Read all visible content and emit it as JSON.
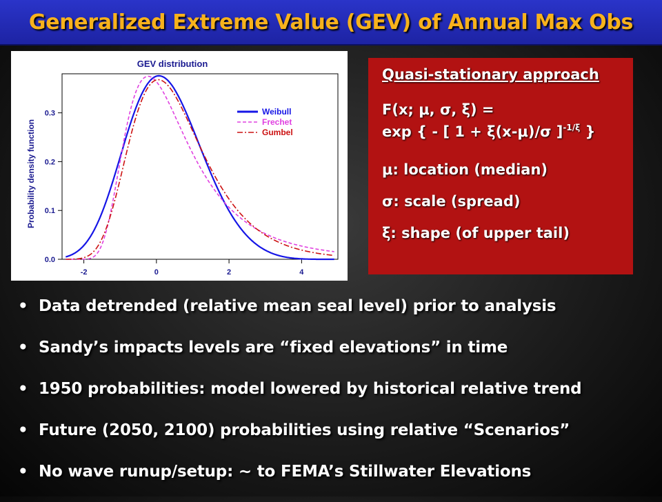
{
  "slide": {
    "title": "Generalized Extreme Value (GEV) of Annual Max Obs"
  },
  "equation_box": {
    "heading": "Quasi-stationary approach",
    "formula_line1": "F(x; μ, σ, ξ) =",
    "formula_line2_main": "exp { - [ 1 + ξ(x-μ)/σ ]",
    "formula_line2_sup": "-1/ξ",
    "formula_line2_end": " }",
    "param_mu": "μ: location (median)",
    "param_sigma": "σ: scale (spread)",
    "param_xi": "ξ: shape (of upper tail)",
    "background_color": "#b21212"
  },
  "bullets": [
    "Data detrended (relative mean seal level) prior to analysis",
    "Sandy’s impacts levels are “fixed elevations” in time",
    "1950 probabilities: model lowered by historical relative trend",
    "Future (2050, 2100) probabilities using relative “Scenarios”",
    "No wave runup/setup: ~ to FEMA’s Stillwater Elevations"
  ],
  "chart_data": {
    "type": "line",
    "title": "GEV distribution",
    "xlabel": "",
    "ylabel": "Probability density function",
    "xlim": [
      -2.6,
      5
    ],
    "ylim": [
      0,
      0.38
    ],
    "x_ticks": [
      -2,
      0,
      2,
      4
    ],
    "y_ticks": [
      0.0,
      0.1,
      0.2,
      0.3
    ],
    "x_tick_labels": [
      "-2",
      "0",
      "2",
      "4"
    ],
    "y_tick_labels": [
      "0.0",
      "0.1",
      "0.2",
      "0.3"
    ],
    "legend_position": "top-right",
    "grid": false,
    "series": [
      {
        "name": "Weibull",
        "color": "#1515e6",
        "dash": "solid",
        "shape": -0.2
      },
      {
        "name": "Frechet",
        "color": "#e040e0",
        "dash": "dashed",
        "shape": 0.2
      },
      {
        "name": "Gumbel",
        "color": "#cc1111",
        "dash": "dashdot",
        "shape": 0.0
      }
    ]
  }
}
